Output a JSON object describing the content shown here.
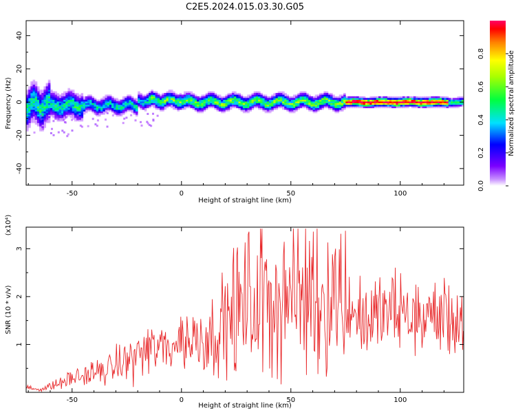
{
  "figure_title": "C2E5.2024.015.03.30.G05",
  "colorbar": {
    "label": "Normalized spectral amplitude",
    "ticks": [
      "0.0",
      "0.2",
      "0.4",
      "0.6",
      "0.8"
    ]
  },
  "chart_data": [
    {
      "type": "heatmap",
      "title": "",
      "xlabel": "Height of straight line (km)",
      "ylabel": "Frequency (Hz)",
      "xlim": [
        -71,
        129
      ],
      "ylim": [
        -50,
        49
      ],
      "x_ticks": [
        "-50",
        "0",
        "50",
        "100"
      ],
      "y_ticks": [
        "-40",
        "-20",
        "0",
        "20",
        "40"
      ],
      "colormap": "rainbow (purple→blue→cyan→green→yellow→red), low amplitude transparent",
      "grid": false,
      "description_of_values": "Narrow band of spectral energy centred near 0 Hz; wider scatter (±10 Hz) from -70 to -20 km, strongest (red) amplitude along 0 Hz from about 75 to 120 km"
    },
    {
      "type": "line",
      "title": "",
      "xlabel": "Height of straight line (km)",
      "ylabel": "SNR (10 * v/v)",
      "y_exponent_label": "(x10⁴)",
      "xlim": [
        -71,
        129
      ],
      "ylim": [
        0,
        3.45
      ],
      "x_ticks": [
        "-50",
        "0",
        "50",
        "100"
      ],
      "y_ticks": [
        "1",
        "2",
        "3"
      ],
      "color": "#e8282a",
      "grid": false,
      "series": [
        {
          "x": [
            -70,
            -65,
            -60,
            -55,
            -50,
            -45,
            -40,
            -35,
            -30,
            -25,
            -20,
            -15,
            -10,
            -5,
            0,
            5,
            10,
            15,
            20,
            25,
            30,
            35,
            40,
            45,
            50,
            55,
            60,
            65,
            70,
            75,
            80,
            85,
            90,
            95,
            100,
            105,
            110,
            115,
            120,
            125,
            129
          ],
          "y": [
            0.1,
            0.06,
            0.12,
            0.2,
            0.3,
            0.35,
            0.4,
            0.45,
            0.55,
            0.65,
            0.8,
            0.9,
            0.9,
            1.0,
            1.1,
            1.1,
            1.15,
            1.2,
            1.5,
            1.7,
            1.8,
            1.9,
            2.0,
            2.0,
            2.05,
            2.0,
            2.1,
            2.0,
            2.1,
            1.9,
            1.6,
            1.5,
            1.6,
            1.7,
            1.65,
            1.6,
            1.55,
            1.6,
            1.6,
            1.5,
            1.5
          ]
        }
      ]
    }
  ]
}
